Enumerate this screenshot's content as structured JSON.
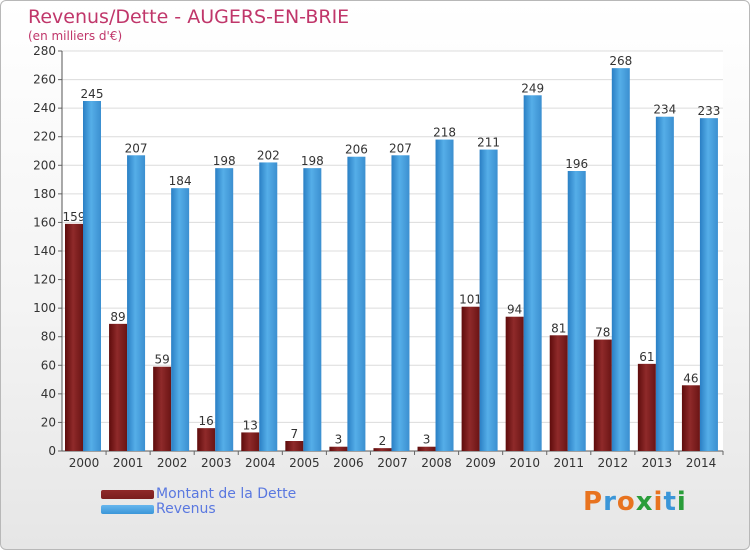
{
  "chart_data": {
    "type": "bar",
    "title": "Revenus/Dette - AUGERS-EN-BRIE",
    "subtitle": "(en milliers d'€)",
    "categories": [
      "2000",
      "2001",
      "2002",
      "2003",
      "2004",
      "2005",
      "2006",
      "2007",
      "2008",
      "2009",
      "2010",
      "2011",
      "2012",
      "2013",
      "2014"
    ],
    "series": [
      {
        "name": "Montant de la Dette",
        "color": "#7a1e1e",
        "values": [
          159,
          89,
          59,
          16,
          13,
          7,
          3,
          2,
          3,
          101,
          94,
          81,
          78,
          61,
          46
        ]
      },
      {
        "name": "Revenus",
        "color": "#3b96d8",
        "values": [
          245,
          207,
          184,
          198,
          202,
          198,
          206,
          207,
          218,
          211,
          249,
          196,
          268,
          234,
          233
        ]
      }
    ],
    "ylim": [
      0,
      280
    ],
    "yticks": [
      0,
      20,
      40,
      60,
      80,
      100,
      120,
      140,
      160,
      180,
      200,
      220,
      240,
      260,
      280
    ],
    "grid": true,
    "legend_position": "bottom-left"
  },
  "brand": {
    "text": "Proxiti"
  }
}
